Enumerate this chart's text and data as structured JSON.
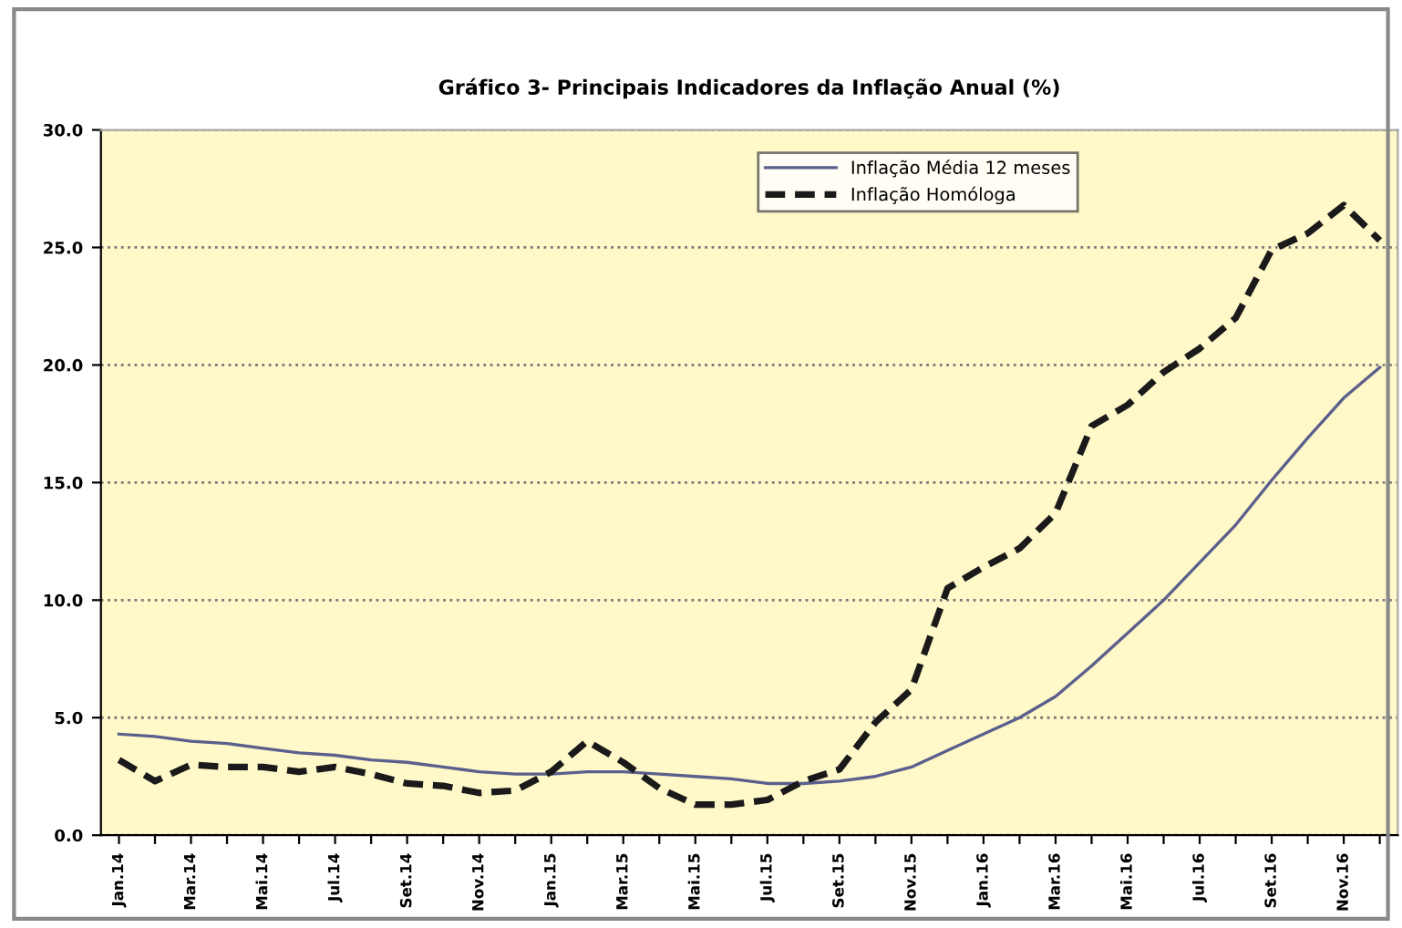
{
  "chart_data": {
    "type": "line",
    "title": "Gráfico 3- Principais Indicadores da Inflação Anual (%)",
    "categories": [
      "Jan.14",
      null,
      "Mar.14",
      null,
      "Mai.14",
      null,
      "Jul.14",
      null,
      "Set.14",
      null,
      "Nov.14",
      null,
      "Jan.15",
      null,
      "Mar.15",
      null,
      "Mai.15",
      null,
      "Jul.15",
      null,
      "Set.15",
      null,
      "Nov.15",
      null,
      "Jan.16",
      null,
      "Mar.16",
      null,
      "Mai.16",
      null,
      "Jul.16",
      null,
      "Set.16",
      null,
      "Nov.16",
      null
    ],
    "series": [
      {
        "name": "Inflação Média 12 meses",
        "color": "#5a5f8c",
        "line_style": "solid",
        "values": [
          4.3,
          4.2,
          4.0,
          3.9,
          3.7,
          3.5,
          3.4,
          3.2,
          3.1,
          2.9,
          2.7,
          2.6,
          2.6,
          2.7,
          2.7,
          2.6,
          2.5,
          2.4,
          2.2,
          2.2,
          2.3,
          2.5,
          2.9,
          3.6,
          4.3,
          5.0,
          5.9,
          7.2,
          8.6,
          10.0,
          11.6,
          13.2,
          15.1,
          16.9,
          18.6,
          19.9
        ]
      },
      {
        "name": "Inflação Homóloga",
        "color": "#1a1a1a",
        "line_style": "dashed",
        "values": [
          3.2,
          2.3,
          3.0,
          2.9,
          2.9,
          2.7,
          2.9,
          2.6,
          2.2,
          2.1,
          1.8,
          1.9,
          2.7,
          4.0,
          3.1,
          2.0,
          1.3,
          1.3,
          1.5,
          2.3,
          2.8,
          4.8,
          6.2,
          10.5,
          11.4,
          12.2,
          13.7,
          17.4,
          18.3,
          19.7,
          20.7,
          22.0,
          24.9,
          25.6,
          26.8,
          25.3
        ]
      }
    ],
    "ylim": [
      0,
      30
    ],
    "yticks": [
      {
        "value": 0,
        "label": "0.0"
      },
      {
        "value": 5,
        "label": "5.0"
      },
      {
        "value": 10,
        "label": "10.0"
      },
      {
        "value": 15,
        "label": "15.0"
      },
      {
        "value": 20,
        "label": "20.0"
      },
      {
        "value": 25,
        "label": "25.0"
      },
      {
        "value": 30,
        "label": "30.0"
      }
    ],
    "grid": "y",
    "legend": "top right",
    "marker": "none"
  }
}
